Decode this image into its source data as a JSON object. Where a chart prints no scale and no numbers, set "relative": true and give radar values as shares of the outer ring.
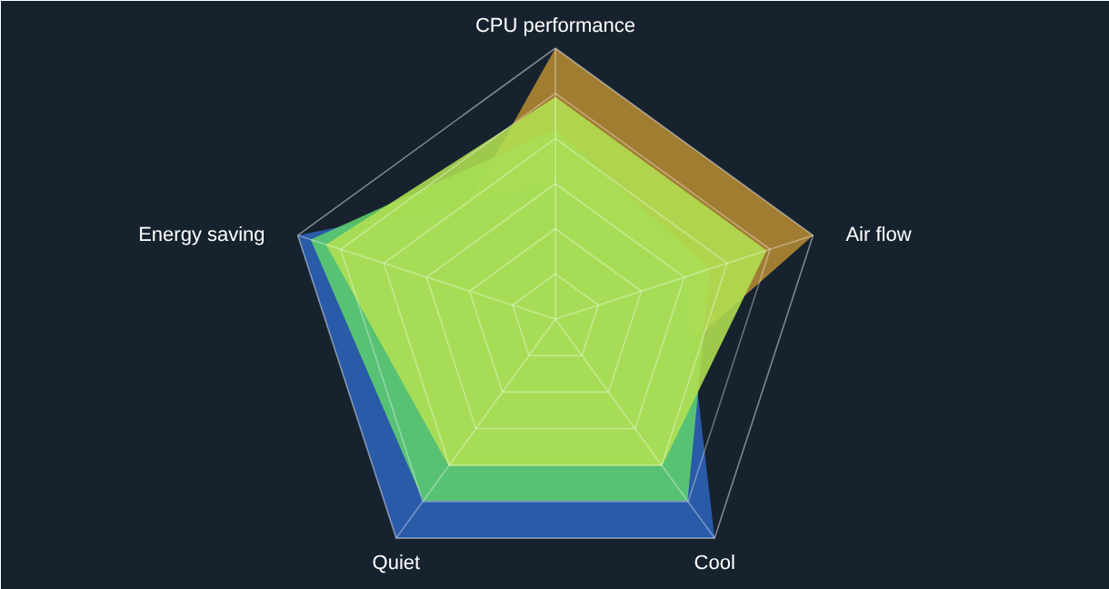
{
  "chart_data": {
    "type": "radar",
    "relative": true,
    "categories": [
      "CPU performance",
      "Air flow",
      "Cool",
      "Quiet",
      "Energy saving"
    ],
    "series": [
      {
        "color": "#b58a33",
        "values": [
          1.0,
          1.0,
          0.4,
          0.3,
          0.5
        ]
      },
      {
        "color": "#2c63b9",
        "values": [
          0.5,
          0.5,
          1.0,
          1.0,
          1.0
        ]
      },
      {
        "color": "#5fd06c",
        "values": [
          0.7,
          0.6,
          0.83,
          0.83,
          0.95
        ]
      },
      {
        "color": "#b2e052",
        "values": [
          0.82,
          0.82,
          0.67,
          0.67,
          0.89
        ]
      }
    ]
  }
}
